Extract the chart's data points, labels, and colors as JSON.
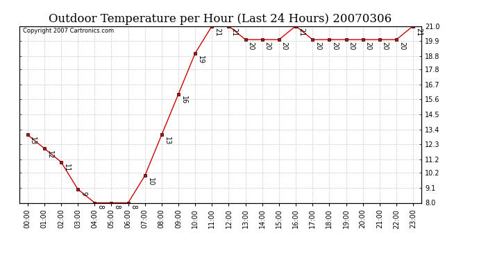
{
  "title": "Outdoor Temperature per Hour (Last 24 Hours) 20070306",
  "copyright": "Copyright 2007 Cartronics.com",
  "hours": [
    "00:00",
    "01:00",
    "02:00",
    "03:00",
    "04:00",
    "05:00",
    "06:00",
    "07:00",
    "08:00",
    "09:00",
    "10:00",
    "11:00",
    "12:00",
    "13:00",
    "14:00",
    "15:00",
    "16:00",
    "17:00",
    "18:00",
    "19:00",
    "20:00",
    "21:00",
    "22:00",
    "23:00"
  ],
  "temps": [
    13,
    12,
    11,
    9,
    8,
    8,
    8,
    10,
    13,
    16,
    19,
    21,
    21,
    20,
    20,
    20,
    21,
    20,
    20,
    20,
    20,
    20,
    20,
    21
  ],
  "ylim": [
    8.0,
    21.0
  ],
  "yticks": [
    8.0,
    9.1,
    10.2,
    11.2,
    12.3,
    13.4,
    14.5,
    15.6,
    16.7,
    17.8,
    18.8,
    19.9,
    21.0
  ],
  "ytick_labels": [
    "8.0",
    "9.1",
    "10.2",
    "11.2",
    "12.3",
    "13.4",
    "14.5",
    "15.6",
    "16.7",
    "17.8",
    "18.8",
    "19.9",
    "21.0"
  ],
  "line_color": "#cc0000",
  "marker_color": "#cc0000",
  "grid_color": "#c8c8c8",
  "bg_color": "#ffffff",
  "title_fontsize": 12,
  "label_fontsize": 7,
  "annot_fontsize": 7,
  "border_color": "#000000"
}
